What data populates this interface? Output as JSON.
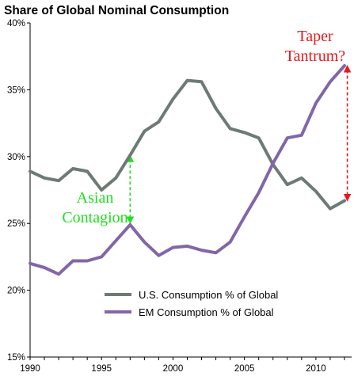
{
  "chart_data": {
    "type": "line",
    "title": "Share of Global Nominal Consumption",
    "xlabel": "",
    "ylabel": "",
    "xlim": [
      1990,
      2012.5
    ],
    "ylim": [
      15,
      40
    ],
    "x_ticks": [
      1990,
      1995,
      2000,
      2005,
      2010
    ],
    "x_tick_labels": [
      "1990",
      "1995",
      "2000",
      "2005",
      "2010"
    ],
    "y_ticks": [
      15,
      20,
      25,
      30,
      35,
      40
    ],
    "y_tick_labels": [
      "15%",
      "20%",
      "25%",
      "30%",
      "35%",
      "40%"
    ],
    "x": [
      1990,
      1991,
      1992,
      1993,
      1994,
      1995,
      1996,
      1997,
      1998,
      1999,
      2000,
      2001,
      2002,
      2003,
      2004,
      2005,
      2006,
      2007,
      2008,
      2009,
      2010,
      2011,
      2012
    ],
    "series": [
      {
        "name": "U.S. Consumption % of Global",
        "color": "#6e7a73",
        "values": [
          28.9,
          28.4,
          28.2,
          29.1,
          28.9,
          27.5,
          28.4,
          30.1,
          31.9,
          32.6,
          34.3,
          35.7,
          35.6,
          33.6,
          32.1,
          31.8,
          31.4,
          29.4,
          27.9,
          28.4,
          27.4,
          26.1,
          26.7
        ]
      },
      {
        "name": "EM Consumption % of Global",
        "color": "#8266a8",
        "values": [
          22.0,
          21.7,
          21.2,
          22.2,
          22.2,
          22.5,
          23.7,
          24.9,
          23.6,
          22.6,
          23.2,
          23.3,
          23.0,
          22.8,
          23.6,
          25.5,
          27.3,
          29.5,
          31.4,
          31.6,
          34.0,
          35.6,
          36.8
        ]
      }
    ],
    "legend_position": "bottom-right",
    "grid": false,
    "annotations": [
      {
        "lines": [
          "Asian",
          "Contagion"
        ],
        "color": "#22dd22",
        "arrow": {
          "x": 1997,
          "y_from": 25.0,
          "y_to": 30.1
        }
      },
      {
        "lines": [
          "Taper",
          "Tantrum?"
        ],
        "color": "#e41a1c",
        "arrow": {
          "x": 2012.2,
          "y_from": 26.7,
          "y_to": 36.8
        }
      }
    ]
  }
}
